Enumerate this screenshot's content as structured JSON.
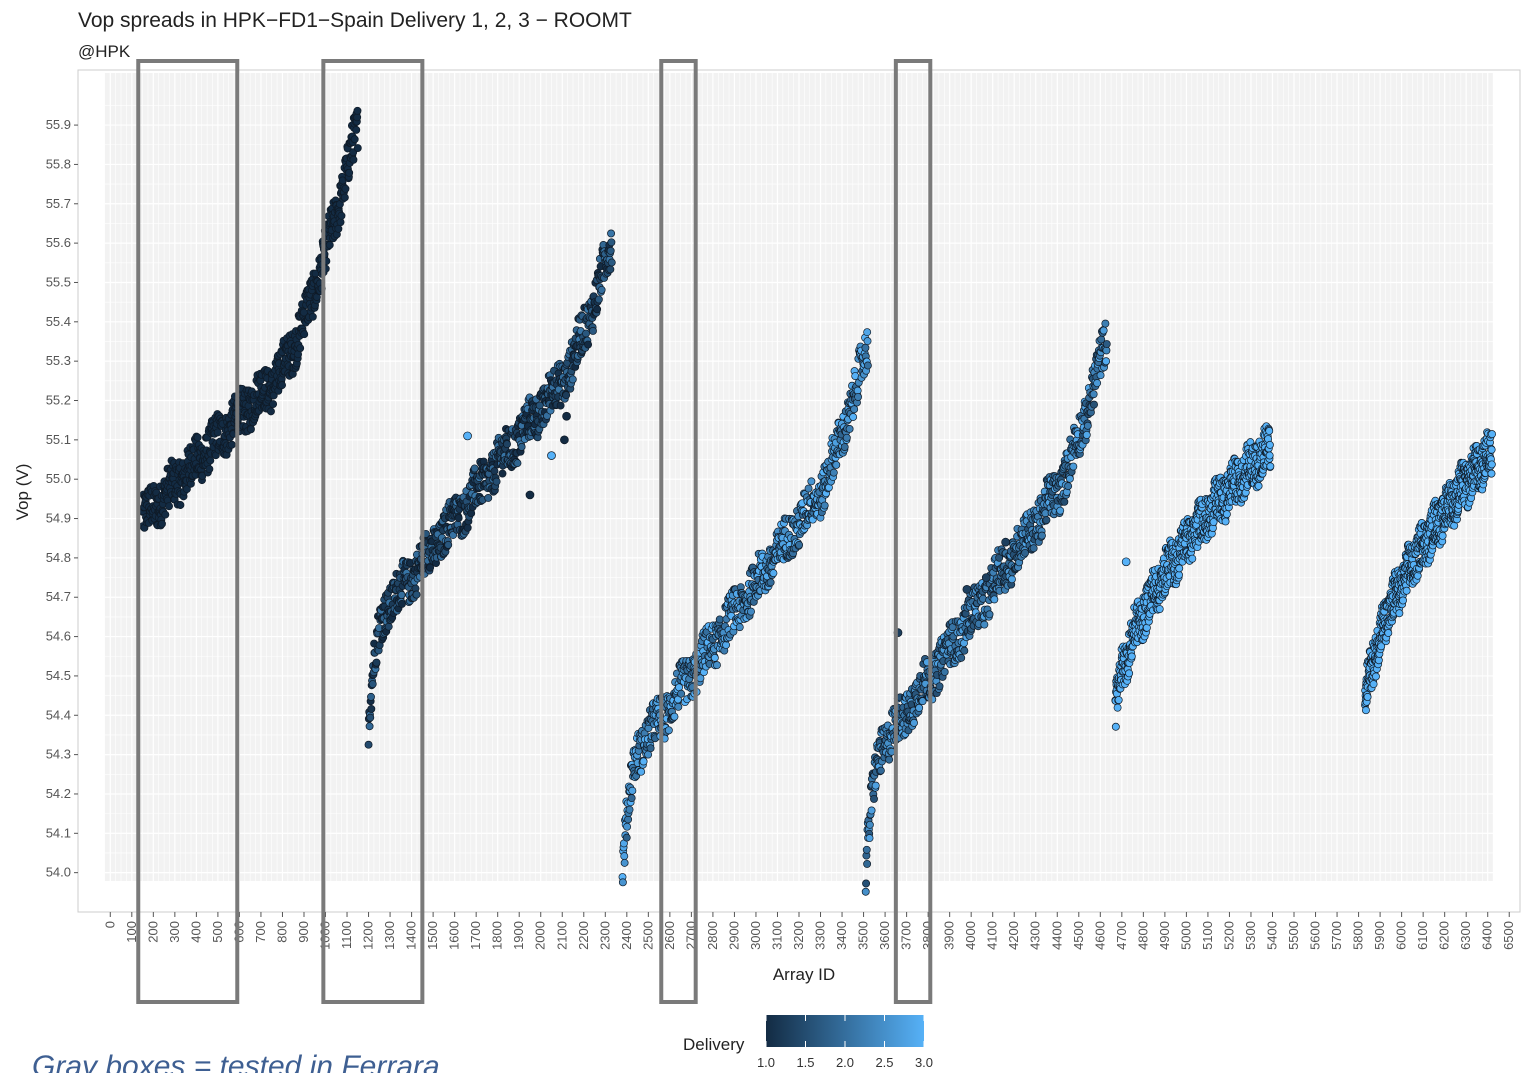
{
  "chart_data": {
    "type": "scatter",
    "title": "Vop spreads in HPK−FD1−Spain Delivery 1, 2, 3  −  ROOMT",
    "subtitle": "@HPK",
    "xlabel": "Array ID",
    "ylabel": "Vop (V)",
    "xlim": [
      -150,
      6550
    ],
    "ylim": [
      53.9,
      56.04
    ],
    "x_ticks": [
      0,
      100,
      200,
      300,
      400,
      500,
      600,
      700,
      800,
      900,
      1000,
      1100,
      1200,
      1300,
      1400,
      1500,
      1600,
      1700,
      1800,
      1900,
      2000,
      2100,
      2200,
      2300,
      2400,
      2500,
      2600,
      2700,
      2800,
      2900,
      3000,
      3100,
      3200,
      3300,
      3400,
      3500,
      3600,
      3700,
      3800,
      3900,
      4000,
      4100,
      4200,
      4300,
      4400,
      4500,
      4600,
      4700,
      4800,
      4900,
      5000,
      5100,
      5200,
      5300,
      5400,
      5500,
      5600,
      5700,
      5800,
      5900,
      6000,
      6100,
      6200,
      6300,
      6400,
      6500
    ],
    "y_ticks": [
      54.0,
      54.1,
      54.2,
      54.3,
      54.4,
      54.5,
      54.6,
      54.7,
      54.8,
      54.9,
      55.0,
      55.1,
      55.2,
      55.3,
      55.4,
      55.5,
      55.6,
      55.7,
      55.8,
      55.9
    ],
    "grid": true,
    "legend": {
      "title": "Delivery",
      "position": "bottom",
      "type": "colorbar",
      "range": [
        1.0,
        3.0
      ],
      "ticks": [
        "1.0",
        "1.5",
        "2.0",
        "2.5",
        "3.0"
      ],
      "color_low": "#132b43",
      "color_high": "#56b1f7"
    },
    "series": [
      {
        "delivery": 1.0,
        "x": [
          150,
          1150
        ],
        "y": [
          54.9,
          55.9
        ],
        "shape": "rising"
      },
      {
        "delivery": 1.5,
        "x": [
          1200,
          2330
        ],
        "y": [
          54.38,
          55.6
        ],
        "shape": "s-curve"
      },
      {
        "delivery": 2.5,
        "x": [
          2380,
          3520
        ],
        "y": [
          54.0,
          55.34
        ],
        "shape": "s-curve"
      },
      {
        "delivery": 2.2,
        "x": [
          3510,
          4630
        ],
        "y": [
          54.0,
          55.36
        ],
        "shape": "s-curve"
      },
      {
        "delivery": 3.0,
        "x": [
          4670,
          5390
        ],
        "y": [
          54.39,
          55.08
        ],
        "shape": "concave"
      },
      {
        "delivery": 3.0,
        "x": [
          5830,
          6420
        ],
        "y": [
          54.39,
          55.07
        ],
        "shape": "concave"
      }
    ],
    "outliers": [
      {
        "x": 1660,
        "y": 55.11,
        "delivery": 3.0
      },
      {
        "x": 1950,
        "y": 54.96,
        "delivery": 1.0
      },
      {
        "x": 2050,
        "y": 55.06,
        "delivery": 3.0
      },
      {
        "x": 2110,
        "y": 55.1,
        "delivery": 1.0
      },
      {
        "x": 2120,
        "y": 55.16,
        "delivery": 1.0
      },
      {
        "x": 3660,
        "y": 54.61,
        "delivery": 1.3
      },
      {
        "x": 3980,
        "y": 54.72,
        "delivery": 1.3
      },
      {
        "x": 4070,
        "y": 54.75,
        "delivery": 1.3
      },
      {
        "x": 4160,
        "y": 54.84,
        "delivery": 1.3
      },
      {
        "x": 4720,
        "y": 54.79,
        "delivery": 3.0
      }
    ],
    "tested_ranges": [
      {
        "x": [
          130,
          590
        ]
      },
      {
        "x": [
          990,
          1450
        ]
      },
      {
        "x": [
          2560,
          2720
        ]
      },
      {
        "x": [
          3650,
          3810
        ]
      }
    ],
    "annotation": "Gray boxes = tested in Ferrara"
  }
}
